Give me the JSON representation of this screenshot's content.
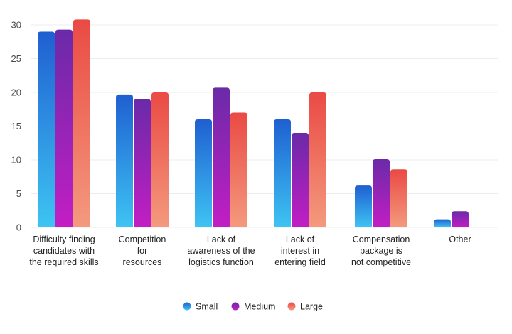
{
  "chart_data": {
    "type": "bar",
    "title": "",
    "xlabel": "",
    "ylabel": "",
    "ylim": [
      0,
      30
    ],
    "yticks": [
      0,
      5,
      10,
      15,
      20,
      25,
      30
    ],
    "grid": true,
    "legend_position": "bottom-center",
    "categories": [
      [
        "Difficulty finding",
        "candidates with",
        "the required skills"
      ],
      [
        "Competition",
        "for",
        "resources"
      ],
      [
        "Lack of",
        "awareness of the",
        "logistics function"
      ],
      [
        "Lack of",
        "interest in",
        "entering field"
      ],
      [
        "Compensation",
        "package is",
        "not competitive"
      ],
      [
        "Other"
      ]
    ],
    "series": [
      {
        "name": "Small",
        "values": [
          29,
          19.7,
          16,
          16,
          6.2,
          1.2
        ],
        "color_top": "#1f5fd1",
        "color_bottom": "#3ec4f3"
      },
      {
        "name": "Medium",
        "values": [
          29.3,
          19,
          20.7,
          14,
          10.1,
          2.4
        ],
        "color_top": "#6a2aa8",
        "color_bottom": "#c21ec4"
      },
      {
        "name": "Large",
        "values": [
          30.8,
          20,
          17,
          20,
          8.6,
          0.1
        ],
        "color_top": "#ea4a44",
        "color_bottom": "#f49a7e"
      }
    ]
  }
}
